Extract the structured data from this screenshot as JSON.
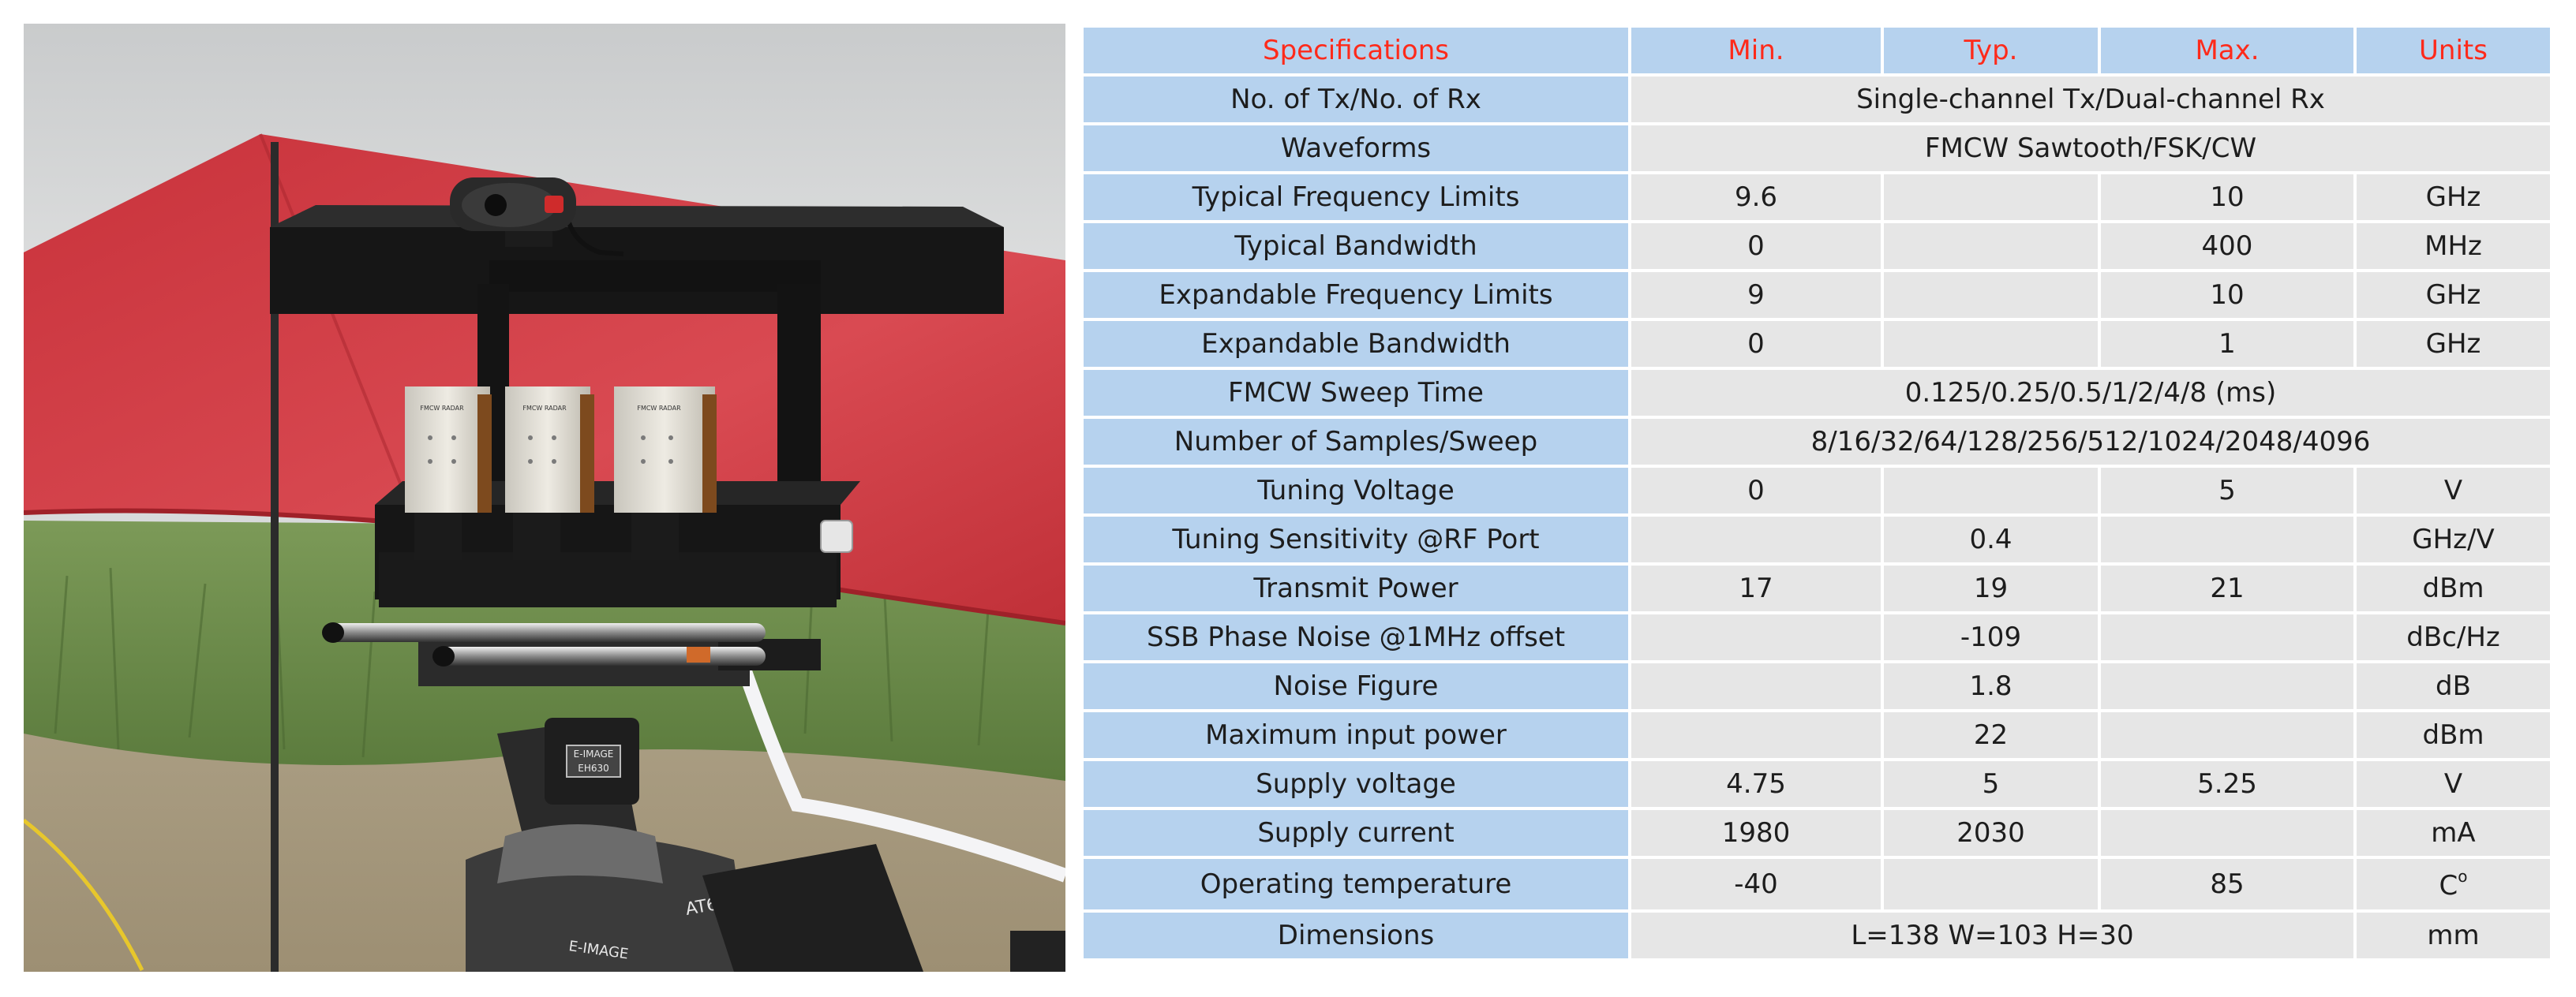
{
  "photo": {
    "label_top": "E-IMAGE",
    "label_model": "EH630",
    "label_leg": "AT630",
    "label_base": "E-IMAGE",
    "board_text": "FMCW RADAR"
  },
  "table": {
    "headers": [
      "Specifications",
      "Min.",
      "Typ.",
      "Max.",
      "Units"
    ],
    "rows": [
      {
        "spec": "No. of Tx/No. of Rx",
        "span": "Single-channel Tx/Dual-channel Rx"
      },
      {
        "spec": "Waveforms",
        "span": "FMCW Sawtooth/FSK/CW"
      },
      {
        "spec": "Typical Frequency Limits",
        "min": "9.6",
        "typ": "",
        "max": "10",
        "units": "GHz"
      },
      {
        "spec": "Typical Bandwidth",
        "min": "0",
        "typ": "",
        "max": "400",
        "units": "MHz"
      },
      {
        "spec": "Expandable Frequency Limits",
        "min": "9",
        "typ": "",
        "max": "10",
        "units": "GHz"
      },
      {
        "spec": "Expandable Bandwidth",
        "min": "0",
        "typ": "",
        "max": "1",
        "units": "GHz"
      },
      {
        "spec": "FMCW Sweep Time",
        "span": "0.125/0.25/0.5/1/2/4/8 (ms)"
      },
      {
        "spec": "Number of Samples/Sweep",
        "span": "8/16/32/64/128/256/512/1024/2048/4096"
      },
      {
        "spec": "Tuning Voltage",
        "min": "0",
        "typ": "",
        "max": "5",
        "units": "V"
      },
      {
        "spec": "Tuning Sensitivity @RF Port",
        "min": "",
        "typ": "0.4",
        "max": "",
        "units": "GHz/V"
      },
      {
        "spec": "Transmit Power",
        "min": "17",
        "typ": "19",
        "max": "21",
        "units": "dBm"
      },
      {
        "spec": "SSB Phase Noise @1MHz offset",
        "min": "",
        "typ": "-109",
        "max": "",
        "units": "dBc/Hz"
      },
      {
        "spec": "Noise Figure",
        "min": "",
        "typ": "1.8",
        "max": "",
        "units": "dB"
      },
      {
        "spec": "Maximum input power",
        "min": "",
        "typ": "22",
        "max": "",
        "units": "dBm"
      },
      {
        "spec": "Supply voltage",
        "min": "4.75",
        "typ": "5",
        "max": "5.25",
        "units": "V"
      },
      {
        "spec": "Supply current",
        "min": "1980",
        "typ": "2030",
        "max": "",
        "units": "mA"
      },
      {
        "spec": "Operating temperature",
        "min": "-40",
        "typ": "",
        "max": "85",
        "units": "C",
        "units_sup": "o"
      },
      {
        "spec": "Dimensions",
        "span3": "L=138 W=103 H=30",
        "units": "mm"
      }
    ]
  }
}
